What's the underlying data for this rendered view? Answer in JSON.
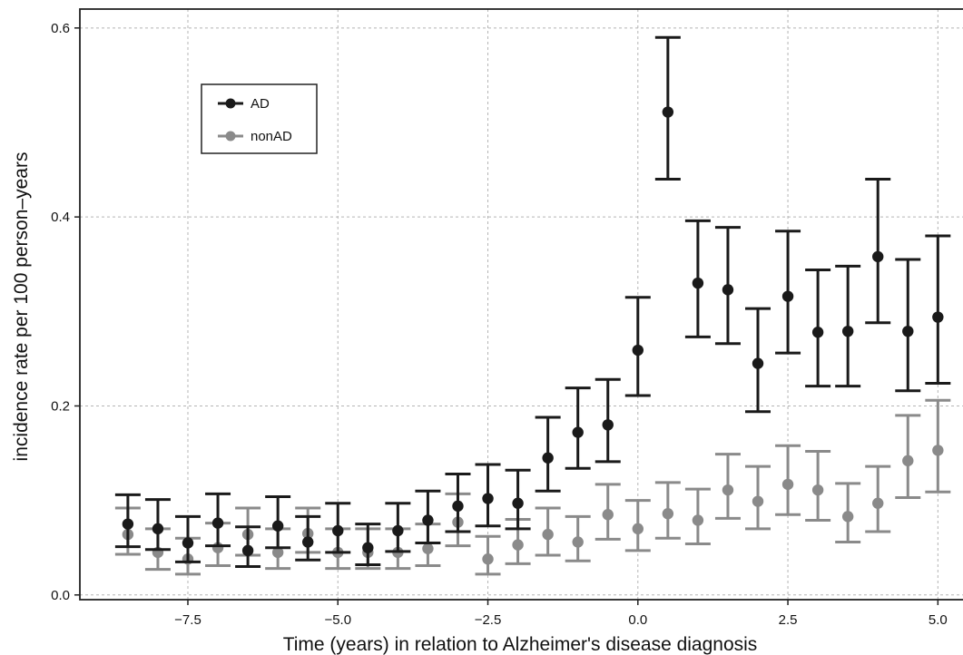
{
  "chart_data": {
    "type": "scatter",
    "title": "",
    "xlabel": "Time (years) in relation to Alzheimer's disease diagnosis",
    "ylabel": "incidence rate per 100 person–years",
    "xlim": [
      -9.3,
      5.6
    ],
    "ylim": [
      -0.005,
      0.62
    ],
    "grid": true,
    "legend_position": "top-left",
    "x_ticks": [
      -7.5,
      -5.0,
      -2.5,
      0.0,
      2.5,
      5.0
    ],
    "x_tick_labels": [
      "−7.5",
      "−5.0",
      "−2.5",
      "0.0",
      "2.5",
      "5.0"
    ],
    "y_ticks": [
      0.0,
      0.2,
      0.4,
      0.6
    ],
    "y_tick_labels": [
      "0.0",
      "0.2",
      "0.4",
      "0.6"
    ],
    "series": [
      {
        "name": "AD",
        "color": "#1a1a1a",
        "x": [
          -8.5,
          -8.0,
          -7.5,
          -7.0,
          -6.5,
          -6.0,
          -5.5,
          -5.0,
          -4.5,
          -4.0,
          -3.5,
          -3.0,
          -2.5,
          -2.0,
          -1.5,
          -1.0,
          -0.5,
          0.0,
          0.5,
          1.0,
          1.5,
          2.0,
          2.5,
          3.0,
          3.5,
          4.0,
          4.5,
          5.0
        ],
        "y": [
          0.075,
          0.07,
          0.055,
          0.076,
          0.047,
          0.073,
          0.056,
          0.068,
          0.05,
          0.068,
          0.079,
          0.094,
          0.102,
          0.097,
          0.145,
          0.172,
          0.18,
          0.259,
          0.511,
          0.33,
          0.323,
          0.245,
          0.316,
          0.278,
          0.279,
          0.358,
          0.279,
          0.294
        ],
        "lower": [
          0.051,
          0.048,
          0.035,
          0.052,
          0.03,
          0.05,
          0.037,
          0.045,
          0.032,
          0.046,
          0.055,
          0.067,
          0.073,
          0.07,
          0.11,
          0.134,
          0.141,
          0.211,
          0.44,
          0.273,
          0.266,
          0.194,
          0.256,
          0.221,
          0.221,
          0.288,
          0.216,
          0.224
        ],
        "upper": [
          0.106,
          0.101,
          0.083,
          0.107,
          0.072,
          0.104,
          0.083,
          0.097,
          0.075,
          0.097,
          0.11,
          0.128,
          0.138,
          0.132,
          0.188,
          0.219,
          0.228,
          0.315,
          0.59,
          0.396,
          0.389,
          0.303,
          0.385,
          0.344,
          0.348,
          0.44,
          0.355,
          0.38
        ]
      },
      {
        "name": "nonAD",
        "color": "#8a8a8a",
        "x": [
          -8.5,
          -8.0,
          -7.5,
          -7.0,
          -6.5,
          -6.0,
          -5.5,
          -5.0,
          -4.5,
          -4.0,
          -3.5,
          -3.0,
          -2.5,
          -2.0,
          -1.5,
          -1.0,
          -0.5,
          0.0,
          0.5,
          1.0,
          1.5,
          2.0,
          2.5,
          3.0,
          3.5,
          4.0,
          4.5,
          5.0
        ],
        "y": [
          0.064,
          0.045,
          0.038,
          0.05,
          0.064,
          0.045,
          0.065,
          0.045,
          0.045,
          0.045,
          0.049,
          0.077,
          0.038,
          0.053,
          0.064,
          0.056,
          0.085,
          0.07,
          0.086,
          0.079,
          0.111,
          0.099,
          0.117,
          0.111,
          0.083,
          0.097,
          0.142,
          0.153
        ],
        "lower": [
          0.043,
          0.027,
          0.022,
          0.031,
          0.042,
          0.028,
          0.045,
          0.028,
          0.028,
          0.028,
          0.031,
          0.052,
          0.022,
          0.033,
          0.042,
          0.036,
          0.059,
          0.047,
          0.06,
          0.054,
          0.081,
          0.07,
          0.085,
          0.079,
          0.056,
          0.067,
          0.103,
          0.109
        ],
        "upper": [
          0.092,
          0.07,
          0.06,
          0.076,
          0.092,
          0.07,
          0.092,
          0.07,
          0.07,
          0.07,
          0.075,
          0.107,
          0.062,
          0.08,
          0.092,
          0.083,
          0.117,
          0.1,
          0.119,
          0.112,
          0.149,
          0.136,
          0.158,
          0.152,
          0.118,
          0.136,
          0.19,
          0.206
        ]
      }
    ]
  }
}
